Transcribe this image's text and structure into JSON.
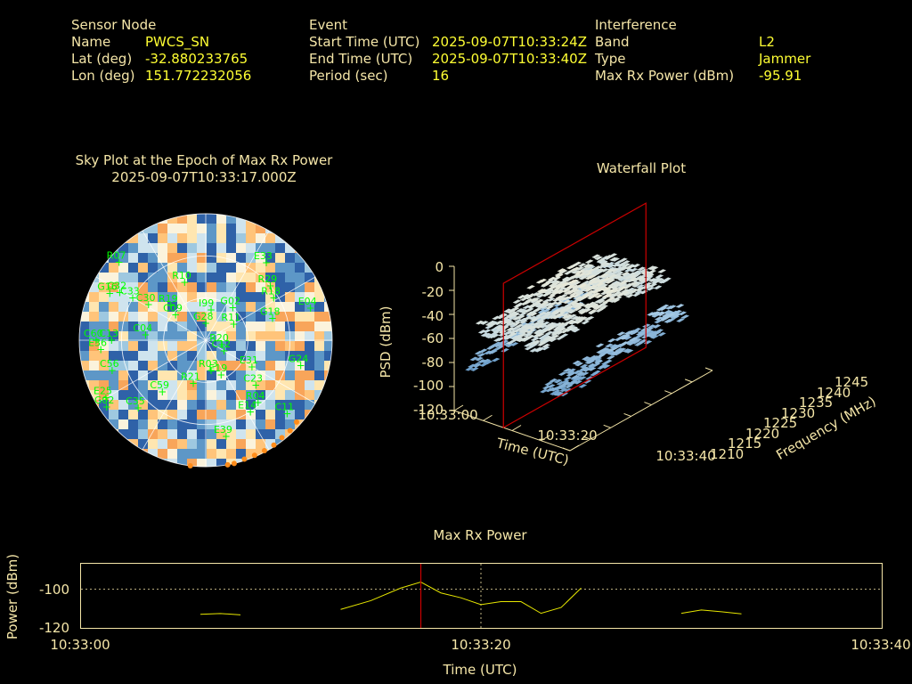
{
  "info": {
    "sensor": {
      "heading": "Sensor Node",
      "rows": [
        {
          "label": "Name",
          "value": "PWCS_SN"
        },
        {
          "label": "Lat (deg)",
          "value": "-32.880233765"
        },
        {
          "label": "Lon (deg)",
          "value": "151.772232056"
        }
      ]
    },
    "event": {
      "heading": "Event",
      "rows": [
        {
          "label": "Start Time (UTC)",
          "value": "2025-09-07T10:33:24Z"
        },
        {
          "label": "End Time (UTC)",
          "value": "2025-09-07T10:33:40Z"
        },
        {
          "label": "Period (sec)",
          "value": "16"
        }
      ]
    },
    "interference": {
      "heading": "Interference",
      "rows": [
        {
          "label": "Band",
          "value": "L2"
        },
        {
          "label": "Type",
          "value": "Jammer"
        },
        {
          "label": "Max Rx Power (dBm)",
          "value": "-95.91"
        }
      ]
    }
  },
  "colors": {
    "label": "#f5e6a8",
    "value": "#ffff33",
    "satellite": "#00ff00",
    "jammer_marker": "#ff8c1a",
    "cursor": "#cc0000",
    "max_power_line": "#e6e600"
  },
  "sky_plot": {
    "title_line1": "Sky Plot at the Epoch of Max Rx Power",
    "title_line2": "2025-09-07T10:33:17.000Z",
    "satellites": [
      {
        "id": "G28",
        "az": 0,
        "el": 78
      },
      {
        "id": "R07",
        "az": 312,
        "el": 7
      },
      {
        "id": "E33",
        "az": 38,
        "el": 20
      },
      {
        "id": "R10",
        "az": 340,
        "el": 46
      },
      {
        "id": "R29",
        "az": 50,
        "el": 30
      },
      {
        "id": "R18",
        "az": 58,
        "el": 33
      },
      {
        "id": "G16",
        "az": 296,
        "el": 14
      },
      {
        "id": "C32",
        "az": 299,
        "el": 20
      },
      {
        "id": "R19",
        "az": 315,
        "el": 55
      },
      {
        "id": "C09",
        "az": 310,
        "el": 62
      },
      {
        "id": "C33",
        "az": 300,
        "el": 30
      },
      {
        "id": "C30",
        "az": 302,
        "el": 42
      },
      {
        "id": "C13",
        "az": 270,
        "el": 23
      },
      {
        "id": "C60",
        "az": 270,
        "el": 12
      },
      {
        "id": "G02",
        "az": 40,
        "el": 60
      },
      {
        "id": "E04",
        "az": 73,
        "el": 12
      },
      {
        "id": "G18",
        "az": 72,
        "el": 40
      },
      {
        "id": "C04",
        "az": 275,
        "el": 47
      },
      {
        "id": "I99",
        "az": 10,
        "el": 68
      },
      {
        "id": "R20",
        "az": 105,
        "el": 78
      },
      {
        "id": "R11",
        "az": 60,
        "el": 67
      },
      {
        "id": "E36",
        "az": 265,
        "el": 15
      },
      {
        "id": "C56",
        "az": 252,
        "el": 20
      },
      {
        "id": "C12",
        "az": 120,
        "el": 75
      },
      {
        "id": "E31",
        "az": 120,
        "el": 52
      },
      {
        "id": "G24",
        "az": 105,
        "el": 20
      },
      {
        "id": "C23",
        "az": 132,
        "el": 42
      },
      {
        "id": "R21",
        "az": 196,
        "el": 58
      },
      {
        "id": "C59",
        "az": 220,
        "el": 42
      },
      {
        "id": "E25",
        "az": 240,
        "el": 8
      },
      {
        "id": "G02",
        "az": 236,
        "el": 5
      },
      {
        "id": "C35",
        "az": 225,
        "el": 22
      },
      {
        "id": "R04",
        "az": 140,
        "el": 32
      },
      {
        "id": "C11",
        "az": 132,
        "el": 12
      },
      {
        "id": "E14",
        "az": 148,
        "el": 30
      },
      {
        "id": "E39",
        "az": 168,
        "el": 20
      },
      {
        "id": "E19",
        "az": 156,
        "el": 63
      },
      {
        "id": "R03",
        "az": 170,
        "el": 68
      }
    ],
    "jammer_markers": [
      {
        "az": 132,
        "el": 3
      },
      {
        "az": 137,
        "el": 2
      },
      {
        "az": 142,
        "el": 2
      },
      {
        "az": 147,
        "el": 1
      },
      {
        "az": 152,
        "el": 1
      },
      {
        "az": 157,
        "el": 1
      },
      {
        "az": 162,
        "el": 1
      },
      {
        "az": 167,
        "el": 0
      },
      {
        "az": 170,
        "el": 0
      },
      {
        "az": 187,
        "el": 0
      }
    ]
  },
  "waterfall": {
    "title": "Waterfall Plot",
    "zlabel": "PSD (dBm)",
    "xlabel": "Time (UTC)",
    "ylabel": "Frequency (MHz)",
    "z_ticks": [
      "0",
      "-20",
      "-40",
      "-60",
      "-80",
      "-100",
      "-120"
    ],
    "x_ticks": [
      "10:33:00",
      "10:33:20",
      "10:33:40"
    ],
    "y_ticks": [
      "1210",
      "1215",
      "1220",
      "1225",
      "1230",
      "1235",
      "1240",
      "1245"
    ]
  },
  "max_power": {
    "title": "Max Rx Power",
    "xlabel": "Time (UTC)",
    "ylabel": "Power (dBm)",
    "y_ticks": [
      "-100",
      "-120"
    ],
    "x_ticks": [
      "10:33:00",
      "10:33:20",
      "10:33:40"
    ]
  },
  "chart_data": [
    {
      "type": "line",
      "title": "Max Rx Power",
      "xlabel": "Time (UTC)",
      "ylabel": "Power (dBm)",
      "xlim": [
        "10:33:00",
        "10:33:40"
      ],
      "ylim": [
        -120,
        -87
      ],
      "segments": [
        {
          "x": [
            "10:33:06",
            "10:33:07",
            "10:33:08"
          ],
          "y": [
            -113.0,
            -112.6,
            -113.3
          ]
        },
        {
          "x": [
            "10:33:13",
            "10:33:14.5",
            "10:33:16",
            "10:33:17",
            "10:33:18",
            "10:33:19",
            "10:33:20",
            "10:33:21",
            "10:33:22",
            "10:33:23",
            "10:33:24",
            "10:33:25"
          ],
          "y": [
            -110.5,
            -106.0,
            -99.5,
            -96.4,
            -102.0,
            -104.5,
            -108.0,
            -106.5,
            -106.5,
            -112.5,
            -109.5,
            -99.5
          ]
        },
        {
          "x": [
            "10:33:30",
            "10:33:31",
            "10:33:32",
            "10:33:33"
          ],
          "y": [
            -112.5,
            -110.8,
            -111.7,
            -112.8
          ]
        }
      ],
      "cursor_x": "10:33:17"
    }
  ]
}
